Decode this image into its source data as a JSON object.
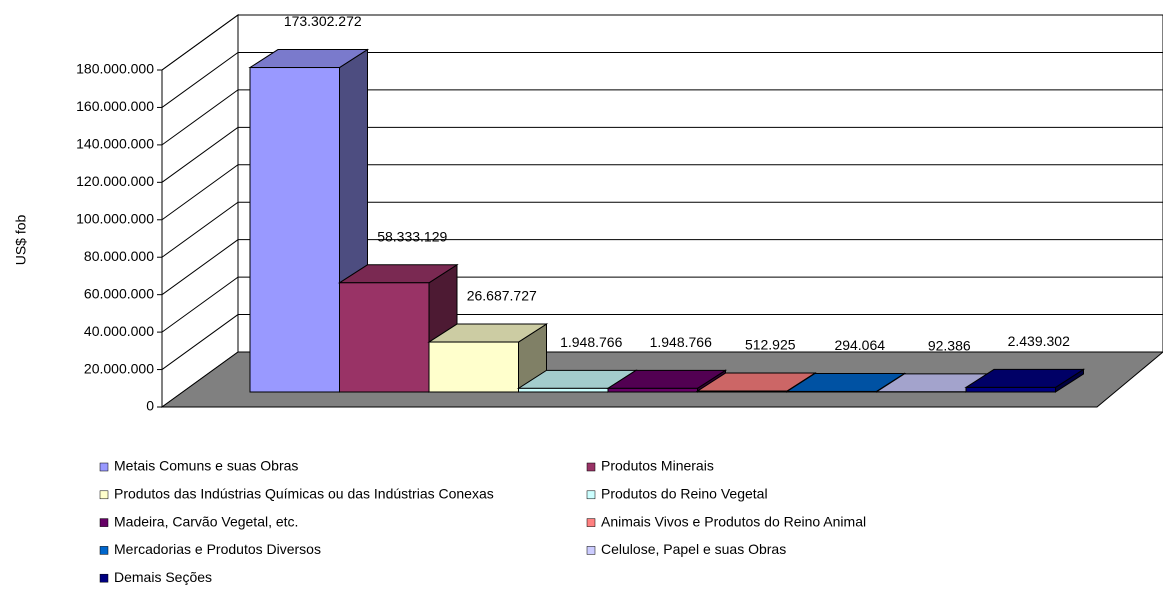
{
  "chart_data": {
    "type": "bar3d",
    "y_label": "US$ fob",
    "categories": [
      "Metais Comuns e suas Obras",
      "Produtos Minerais",
      "Produtos das Indústrias Químicas ou das Indústrias Conexas",
      "Produtos do Reino Vegetal",
      "Madeira, Carvão Vegetal, etc.",
      "Animais Vivos e Produtos do Reino Animal",
      "Mercadorias e Produtos Diversos",
      "Celulose, Papel e suas Obras",
      "Demais Seções"
    ],
    "values": [
      173302272,
      58333129,
      26687727,
      1948766,
      1948766,
      512925,
      294064,
      92386,
      2439302
    ],
    "value_labels": [
      "173.302.272",
      "58.333.129",
      "26.687.727",
      "1.948.766",
      "1.948.766",
      "512.925",
      "294.064",
      "92.386",
      "2.439.302"
    ],
    "colors": [
      "#9999ff",
      "#993366",
      "#ffffcc",
      "#ccffff",
      "#660066",
      "#ff8080",
      "#0066cc",
      "#ccccff",
      "#000080"
    ],
    "ylim": [
      0,
      180000000
    ],
    "yticks": [
      0,
      {
        "value": 20000000,
        "label": "20.000.000"
      },
      {
        "value": 40000000,
        "label": "40.000.000"
      },
      {
        "value": 60000000,
        "label": "60.000.000"
      },
      {
        "value": 80000000,
        "label": "80.000.000"
      },
      {
        "value": 100000000,
        "label": "100.000.000"
      },
      {
        "value": 120000000,
        "label": "120.000.000"
      },
      {
        "value": 140000000,
        "label": "140.000.000"
      },
      {
        "value": 160000000,
        "label": "160.000.000"
      },
      {
        "value": 180000000,
        "label": "180.000.000"
      }
    ],
    "grid": true,
    "legend": "bottom"
  }
}
